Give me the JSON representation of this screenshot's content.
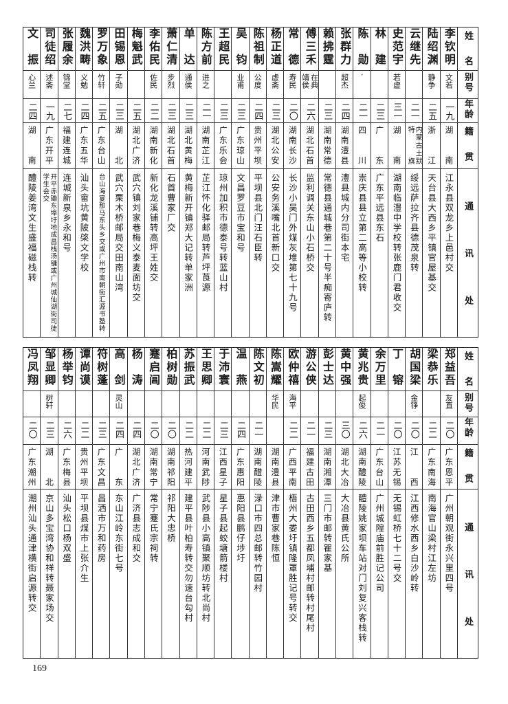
{
  "headers": {
    "name": "姓名",
    "alias": "别号",
    "age": "年龄",
    "native": "籍贯",
    "address": "通讯处"
  },
  "top": {
    "rows": [
      {
        "name": "李钦明",
        "alias": "文若",
        "age": "一九",
        "native": "湖南",
        "address": "江永县双龙乡上邑村交"
      },
      {
        "name": "陆绍渊",
        "alias": "静争",
        "age": "二五",
        "native": "浙江",
        "address": "天台县大西乡平镇官屋基交"
      },
      {
        "name": "云继先",
        "alias": "",
        "age": "二一",
        "native": "内蒙古土默特旗",
        "address": "绥远萨拉齐县德茂泉转"
      },
      {
        "name": "史范宇",
        "alias": "若虚",
        "age": "三一",
        "native": "湖南",
        "address": "湖南临澧中学校转张鹿门君收交"
      },
      {
        "name": "林建",
        "alias": "",
        "age": "二三",
        "native": "广东",
        "address": "广东平远县东石"
      },
      {
        "name": "陈勋",
        "alias": "·",
        "age": "二一",
        "native": "四川",
        "address": "崇庆县县立第二高等小校转"
      },
      {
        "name": "张群力",
        "alias": "超杰",
        "age": "二四",
        "native": "湖南澧县",
        "address": "澧县城内分司街本宅"
      },
      {
        "name": "赖拂霆",
        "alias": "",
        "age": "二三",
        "native": "湖南常德",
        "address": "常德县通城巷第二十号半痴寄庐转"
      },
      {
        "name": "傅三禾",
        "alias": "在典靖侯",
        "age": "二六",
        "native": "湖北石首",
        "address": "监利调关东山小石桥交"
      },
      {
        "name": "常德",
        "alias": "寿民",
        "age": "二〇",
        "native": "湖南长沙",
        "address": "长沙小吴门外煤灰堆第七十九号"
      },
      {
        "name": "杨正道",
        "alias": "虚斋",
        "age": "二三",
        "native": "湖北公安",
        "address": "公安务溪嘴北首新口交"
      },
      {
        "name": "陈祖制",
        "alias": "公度",
        "age": "二四",
        "native": "贵州平坝",
        "address": "平坝县北门汪石臣转"
      },
      {
        "name": "吴钧",
        "alias": "业甫",
        "age": "二三",
        "native": "广东琼山",
        "address": "文昌罗豆市宝和号"
      },
      {
        "name": "王超民",
        "alias": "",
        "age": "二三",
        "native": "广东乐会",
        "address": "琼州加积市德泰号转蓝山村"
      },
      {
        "name": "陈方前",
        "alias": "进之",
        "age": "二一",
        "native": "湖南芷江",
        "address": "芷江怀化驿邮局转芦坪莨源"
      },
      {
        "name": "单达",
        "alias": "通侯",
        "age": "二三",
        "native": "湖北黄梅",
        "address": "黄梅新开镇郑大记转单家洲"
      },
      {
        "name": "萧仁清",
        "alias": "步烈",
        "age": "二三",
        "native": "湖北石首",
        "address": "石首曹家厂交"
      },
      {
        "name": "李佑民",
        "alias": "佐民",
        "age": "二二",
        "native": "湖南新化",
        "address": "新化龙溪铺转高坪王姓交"
      },
      {
        "name": "梅魁武",
        "alias": "",
        "age": "二五",
        "native": "湖北广济",
        "address": "武穴镇刘家巷梅义泰麦面坊交"
      },
      {
        "name": "田锡恩",
        "alias": "子勋",
        "age": "二三",
        "native": "湖北",
        "address": "武穴栗木桥邮局交田南山湾"
      },
      {
        "name": "罗万象",
        "alias": "竹轩",
        "age": "二五",
        "native": "广东台山",
        "address": "台山海宴那马东头乡交或广州市南朝街汇源书塾转"
      },
      {
        "name": "魏洪畴",
        "alias": "义勉",
        "age": "二四",
        "native": "广东五华",
        "address": "汕头畲坑黄陂棨文学校"
      },
      {
        "name": "张履余",
        "alias": "锦堂",
        "age": "二七",
        "native": "福建连城",
        "address": "连城新泉乡永和号"
      },
      {
        "name": "司徒绍",
        "alias": "述斋",
        "age": "一九",
        "native": "广东开平",
        "address": "开平赤磡东埠圩地成昌栈汤镛或广州城仙湖街司徒学生会交"
      },
      {
        "name": "文振",
        "alias": "心兰",
        "age": "二四",
        "native": "湖南",
        "address": "醴陵姜湾文生盛福磁栈转"
      }
    ]
  },
  "bottom": {
    "rows": [
      {
        "name": "郑益吾",
        "alias": "友直",
        "age": "二〇",
        "native": "广东恩平",
        "address": "广州朝观街永兴里四号"
      },
      {
        "name": "梁恭乐",
        "alias": "",
        "age": "二二",
        "native": "广东南海",
        "address": "南海官山梁村江左坊"
      },
      {
        "name": "胡国梁",
        "alias": "金铮",
        "age": "二〇",
        "native": "江西",
        "address": "江西修水西乡白沙岭转"
      },
      {
        "name": "丁镕",
        "alias": "",
        "age": "二〇",
        "native": "江苏无锡",
        "address": "无锡虹桥七十二号交"
      },
      {
        "name": "余万里",
        "alias": "",
        "age": "二一",
        "native": "广东台山",
        "address": "广州城隍庙前胜记公司"
      },
      {
        "name": "黄兆贵",
        "alias": "起俊",
        "age": "二六",
        "native": "湖南醴陵",
        "address": "醴陵姚家坝车站对门刘复兴客栈转"
      },
      {
        "name": "黄中强",
        "alias": "",
        "age": "三〇",
        "native": "湖北大冶",
        "address": "大冶县黄氏公所"
      },
      {
        "name": "彭士达",
        "alias": "",
        "age": "二三",
        "native": "湖南湘潭",
        "address": "三门市邮转瞿家基"
      },
      {
        "name": "游公侠",
        "alias": "",
        "age": "二一",
        "native": "福建古田",
        "address": "古田西乡五都凤埔村邮转村尾村"
      },
      {
        "name": "欧仲禧",
        "alias": "海平",
        "age": "二二",
        "native": "广西平南",
        "address": "梧州大娄圩镇隆罩胜记号转交"
      },
      {
        "name": "陈嵩耀",
        "alias": "华民",
        "age": "",
        "native": "湖南澧县",
        "address": "津市曹家巷陈恒"
      },
      {
        "name": "陈文初",
        "alias": "",
        "age": "二一",
        "native": "湖南醴陵",
        "address": "渌口市四总邮转竹园村"
      },
      {
        "name": "温燕",
        "alias": "",
        "age": "二四",
        "native": "广东惠阳",
        "address": "惠阳县鹏仔埗圩"
      },
      {
        "name": "于沛寰",
        "alias": "",
        "age": "二三",
        "native": "江西星子",
        "address": "星子县起蛟塘箭楼村"
      },
      {
        "name": "王思卿",
        "alias": "",
        "age": "二二",
        "native": "河南武陟",
        "address": "武陟县小高镇聚顺坊转北尚村"
      },
      {
        "name": "苏振武",
        "alias": "",
        "age": "二二",
        "native": "热河建平",
        "address": "建平县叶柏寿转交勿速台勾村"
      },
      {
        "name": "柏树勋",
        "alias": "",
        "age": "二〇",
        "native": "湖南祁阳",
        "address": "祁阳大忠桥"
      },
      {
        "name": "蹇启阊",
        "alias": "",
        "age": "二〇",
        "native": "湖南常宁",
        "address": "常宁蹇氏宗祠转"
      },
      {
        "name": "杨涛",
        "alias": "",
        "age": "二四",
        "native": "湖北广济",
        "address": "广济县志成和交"
      },
      {
        "name": "高剑",
        "alias": "灵山",
        "age": "二四",
        "native": "广东",
        "address": "东山江岭东街七号"
      },
      {
        "name": "符树蓬",
        "alias": "",
        "age": "二三",
        "native": "广东文昌",
        "address": "昌洒市万和药房"
      },
      {
        "name": "谭尚谟",
        "alias": "",
        "age": "二二",
        "native": "贵州平坝",
        "address": "平坝县煤市上张介生"
      },
      {
        "name": "杨举钧",
        "alias": "",
        "age": "二六",
        "native": "广东梅县",
        "address": "汕头松口杨双盛"
      },
      {
        "name": "邹显卿",
        "alias": "树轩",
        "age": "二三",
        "native": "湖北",
        "address": "京山多宝湾协和祥转聂家场交"
      },
      {
        "name": "冯凤翔",
        "alias": "",
        "age": "二〇",
        "native": "广东潮州",
        "address": "潮州汕头通津横街启源转交"
      }
    ]
  },
  "page_number": "169"
}
